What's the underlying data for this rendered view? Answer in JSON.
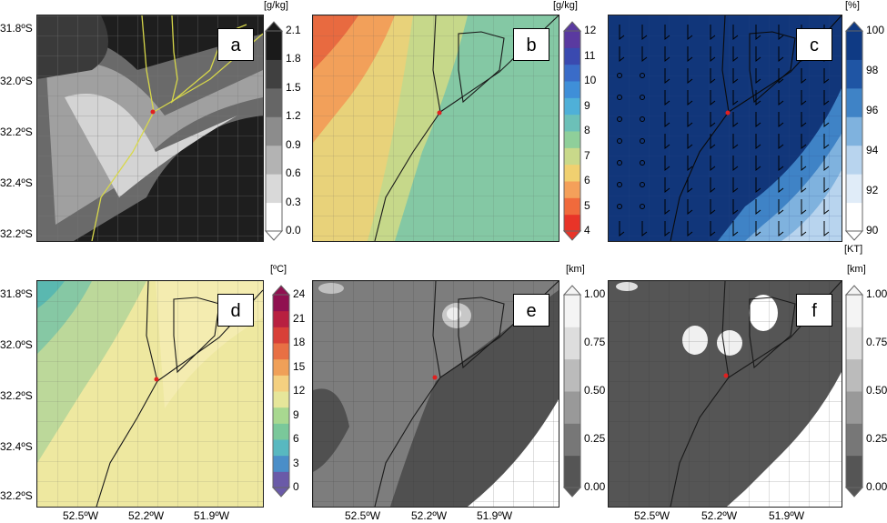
{
  "panels": [
    {
      "label": "a",
      "unit": "[g/kg]",
      "ticks": [
        "2.1",
        "1.8",
        "1.5",
        "1.2",
        "0.9",
        "0.6",
        "0.3",
        "0.0"
      ],
      "extra_unit": ""
    },
    {
      "label": "b",
      "unit": "[g/kg]",
      "ticks": [
        "12",
        "11",
        "10",
        "9",
        "8",
        "7",
        "6",
        "5",
        "4"
      ],
      "extra_unit": ""
    },
    {
      "label": "c",
      "unit": "[%]",
      "ticks": [
        "100",
        "98",
        "96",
        "94",
        "92",
        "90"
      ],
      "extra_unit": "[KT]"
    },
    {
      "label": "d",
      "unit": "[ºC]",
      "ticks": [
        "24",
        "21",
        "18",
        "15",
        "12",
        "9",
        "6",
        "3",
        "0"
      ],
      "extra_unit": ""
    },
    {
      "label": "e",
      "unit": "[km]",
      "ticks": [
        "1.00",
        "0.75",
        "0.50",
        "0.25",
        "0.00"
      ],
      "extra_unit": ""
    },
    {
      "label": "f",
      "unit": "[km]",
      "ticks": [
        "1.00",
        "0.75",
        "0.50",
        "0.25",
        "0.00"
      ],
      "extra_unit": ""
    }
  ],
  "lat_labels": [
    "31.8ºS",
    "32.0ºS",
    "32.2ºS",
    "32.4ºS",
    "32.2ºS"
  ],
  "lon_labels": [
    "52.5ºW",
    "52.2ºW",
    "51.9ºW"
  ],
  "colors": {
    "coast": "#1a1a1a",
    "coast_a": "#d8d84a",
    "location_marker": "#e02020"
  },
  "colorbars": {
    "a": [
      "#ffffff",
      "#d9d9d9",
      "#b3b3b3",
      "#8c8c8c",
      "#666666",
      "#404040",
      "#1a1a1a"
    ],
    "b": [
      "#e83428",
      "#f06a3c",
      "#f4a05a",
      "#f0d070",
      "#c9d98a",
      "#8fcf9a",
      "#6cc0b8",
      "#4fb0d8",
      "#3f8fd8",
      "#3a6cc8",
      "#3a4ab0",
      "#5a3aa0"
    ],
    "c": [
      "#ffffff",
      "#e0ecf8",
      "#b8d4ee",
      "#7fb2de",
      "#3f83c6",
      "#1f55a4",
      "#0f3a84"
    ],
    "d": [
      "#6a5aa8",
      "#4a8ec8",
      "#58b8c0",
      "#7ac89a",
      "#a8d890",
      "#e6e69a",
      "#f4d080",
      "#f0a058",
      "#e87044",
      "#d84038",
      "#b82040",
      "#901050"
    ],
    "e": [
      "#555555",
      "#777777",
      "#999999",
      "#bbbbbb",
      "#dddddd",
      "#f4f4f4"
    ],
    "f": [
      "#555555",
      "#777777",
      "#999999",
      "#bbbbbb",
      "#dddddd",
      "#f4f4f4"
    ]
  }
}
